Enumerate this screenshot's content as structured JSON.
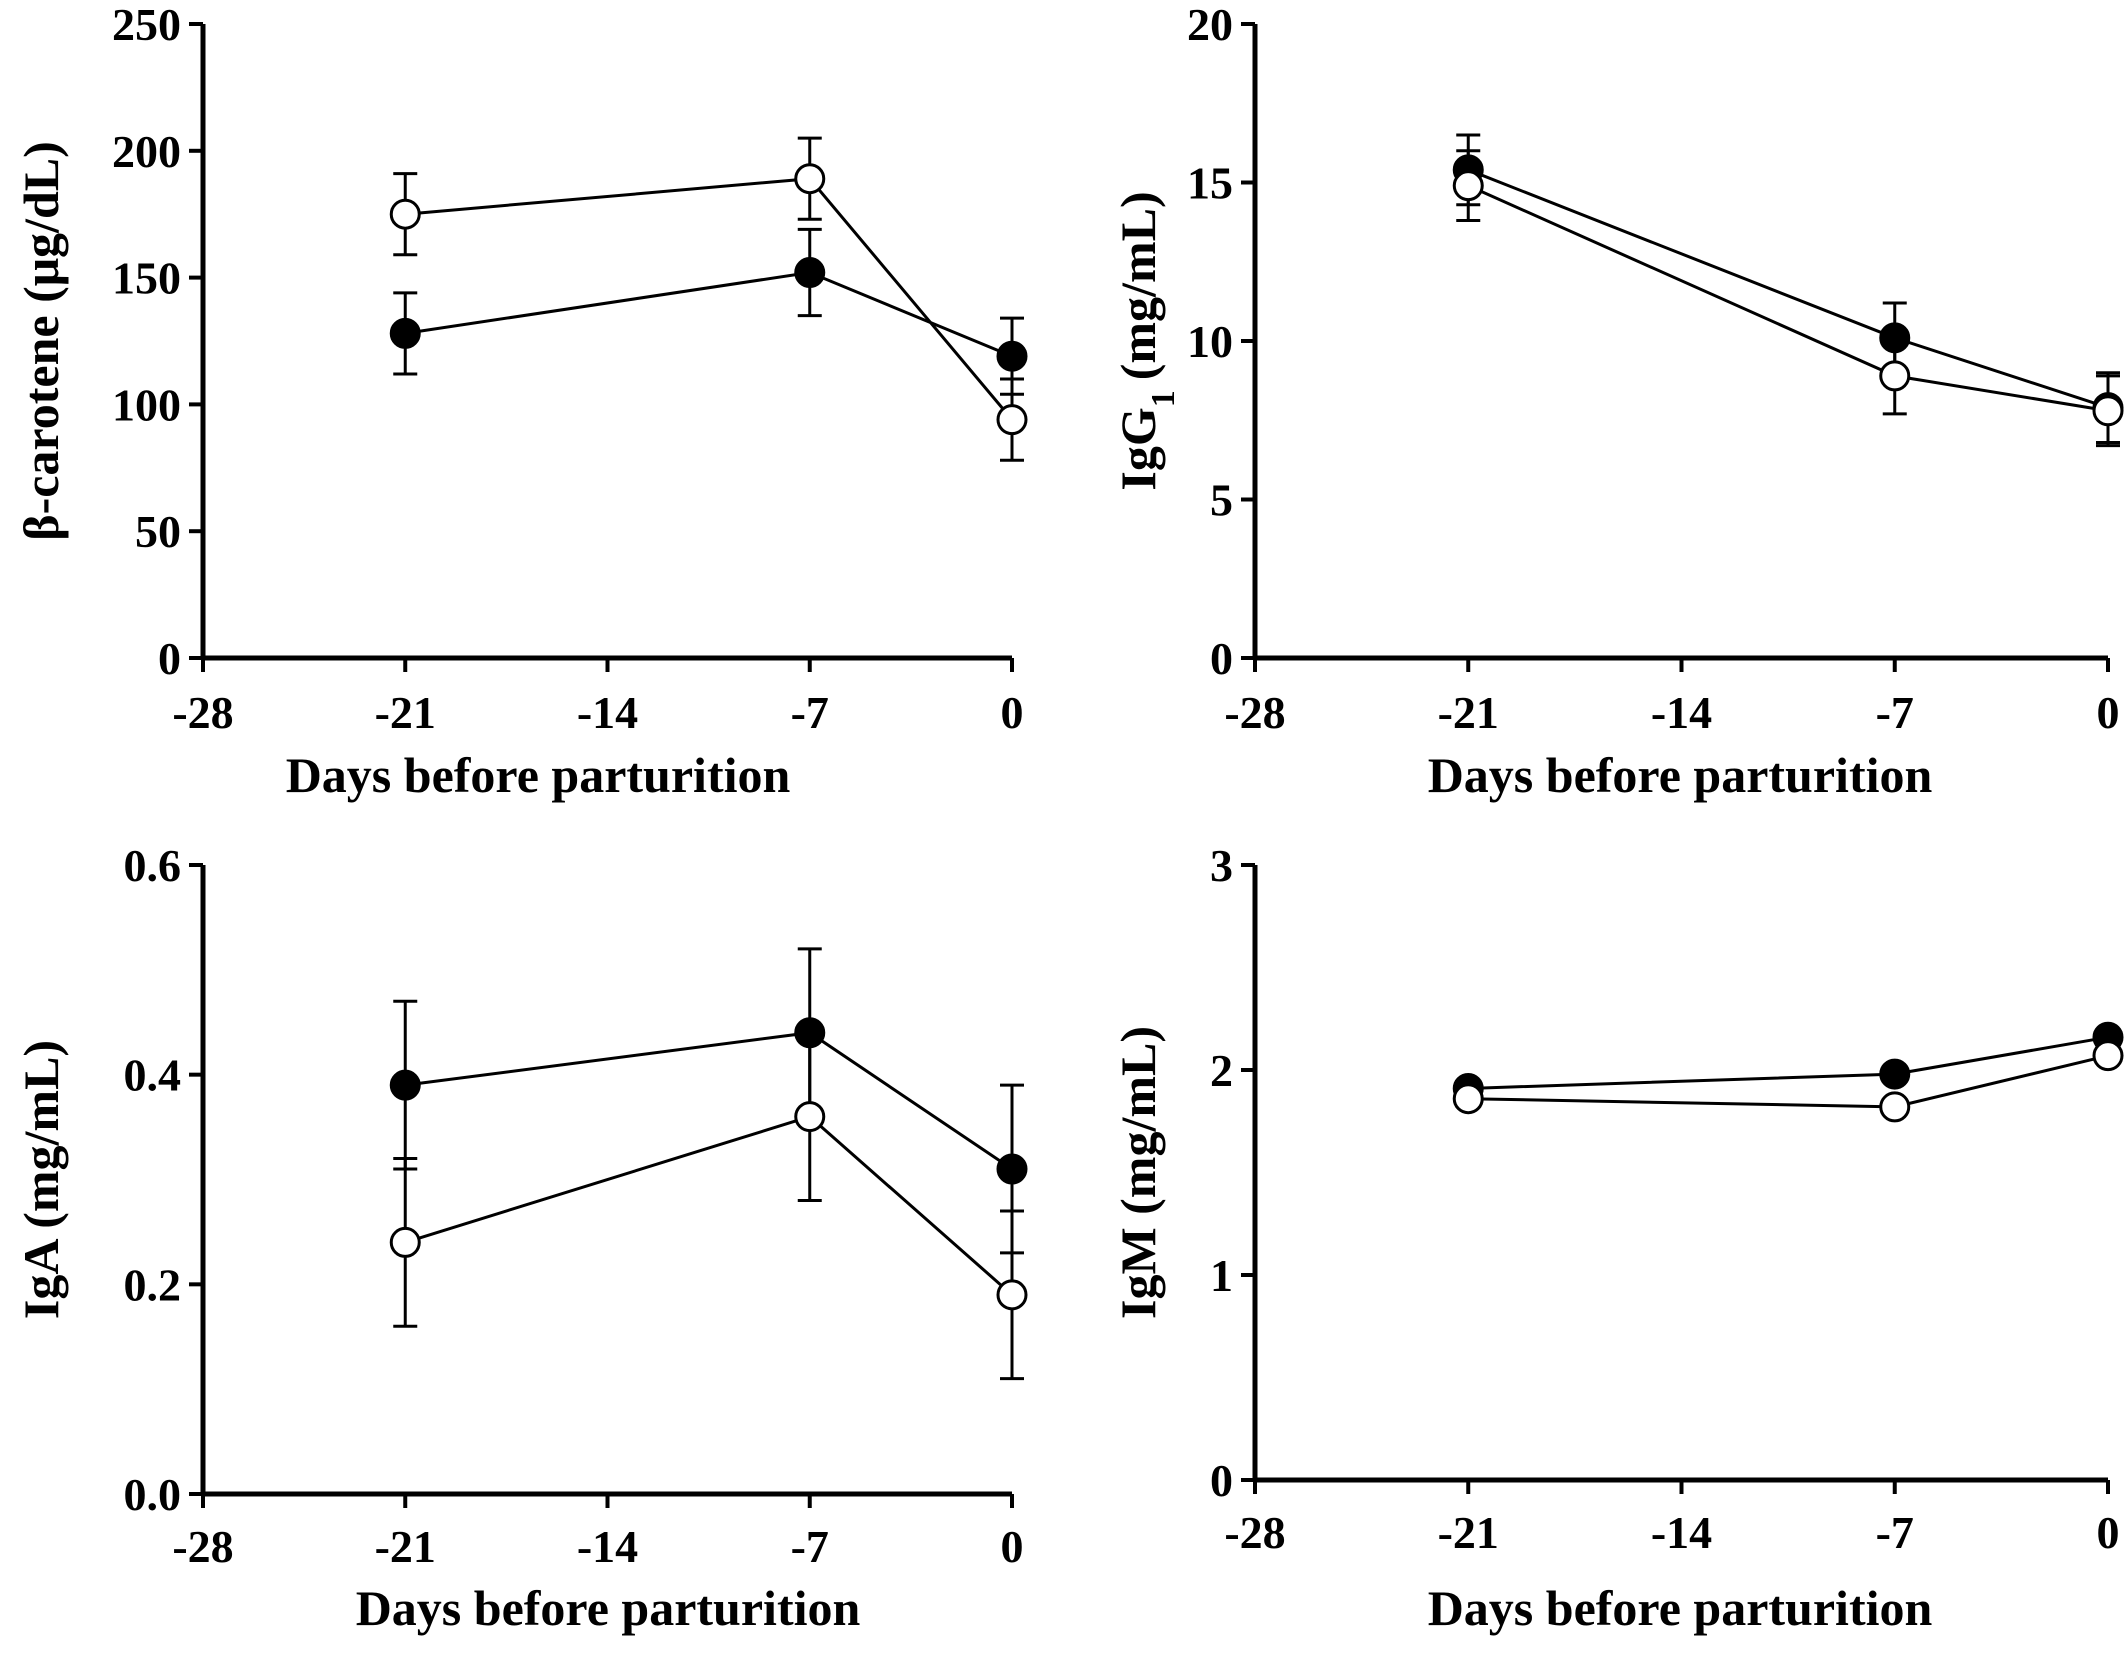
{
  "chart_data": [
    {
      "type": "line",
      "xlabel": "Days before parturition",
      "ylabel": "β-carotene (μg/dL)",
      "xlim": [
        -28,
        0
      ],
      "ylim": [
        0,
        250
      ],
      "xticks": [
        -28,
        -21,
        -14,
        -7,
        0
      ],
      "yticks": [
        0,
        50,
        100,
        150,
        200,
        250
      ],
      "x": [
        -21,
        -7,
        0
      ],
      "series": [
        {
          "marker": "filled-circle",
          "values": [
            128,
            152,
            119
          ],
          "errors": [
            16,
            17,
            15
          ]
        },
        {
          "marker": "open-circle",
          "values": [
            175,
            189,
            94
          ],
          "errors": [
            16,
            16,
            16
          ]
        }
      ]
    },
    {
      "type": "line",
      "xlabel": "Days before parturition",
      "ylabel": "IgG",
      "ylabel_sub": "1",
      "ylabel_suffix": "(mg/mL)",
      "xlim": [
        -28,
        0
      ],
      "ylim": [
        0,
        20
      ],
      "xticks": [
        -28,
        -21,
        -14,
        -7,
        0
      ],
      "yticks": [
        0,
        5,
        10,
        15,
        20
      ],
      "x": [
        -21,
        -7,
        0
      ],
      "series": [
        {
          "marker": "filled-circle",
          "values": [
            15.4,
            10.1,
            7.9
          ],
          "errors": [
            1.1,
            1.1,
            1.1
          ]
        },
        {
          "marker": "open-circle",
          "values": [
            14.9,
            8.9,
            7.8
          ],
          "errors": [
            1.1,
            1.2,
            1.1
          ]
        }
      ]
    },
    {
      "type": "line",
      "xlabel": "Days before parturition",
      "ylabel": "IgA (mg/mL)",
      "xlim": [
        -28,
        0
      ],
      "ylim": [
        0,
        0.6
      ],
      "xticks": [
        -28,
        -21,
        -14,
        -7,
        0
      ],
      "yticks": [
        "0.0",
        "0.2",
        "0.4",
        "0.6"
      ],
      "x": [
        -21,
        -7,
        0
      ],
      "series": [
        {
          "marker": "filled-circle",
          "values": [
            0.39,
            0.44,
            0.31
          ],
          "errors": [
            0.08,
            0.08,
            0.08
          ]
        },
        {
          "marker": "open-circle",
          "values": [
            0.24,
            0.36,
            0.19
          ],
          "errors": [
            0.08,
            0.08,
            0.08
          ]
        }
      ]
    },
    {
      "type": "line",
      "xlabel": "Days before parturition",
      "ylabel": "IgM (mg/mL)",
      "xlim": [
        -28,
        0
      ],
      "ylim": [
        0,
        3
      ],
      "xticks": [
        -28,
        -21,
        -14,
        -7,
        0
      ],
      "yticks": [
        0,
        1,
        2,
        3
      ],
      "x": [
        -21,
        -7,
        0
      ],
      "series": [
        {
          "marker": "filled-circle",
          "values": [
            1.91,
            1.98,
            2.16
          ],
          "errors": [
            0.04,
            0.04,
            0.04
          ]
        },
        {
          "marker": "open-circle",
          "values": [
            1.86,
            1.82,
            2.07
          ],
          "errors": [
            0.04,
            0.04,
            0.04
          ]
        }
      ]
    }
  ]
}
